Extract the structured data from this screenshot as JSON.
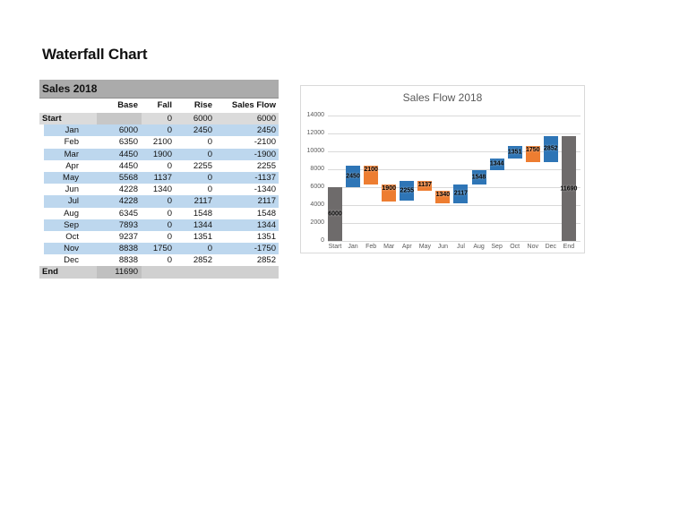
{
  "page_title": "Waterfall Chart",
  "table": {
    "title": "Sales 2018",
    "columns": [
      "",
      "Base",
      "Fall",
      "Rise",
      "Sales Flow"
    ],
    "rows": [
      {
        "label": "Start",
        "base": "",
        "fall": "0",
        "rise": "6000",
        "flow": "6000",
        "style": "total-start"
      },
      {
        "label": "Jan",
        "base": "6000",
        "fall": "0",
        "rise": "2450",
        "flow": "2450"
      },
      {
        "label": "Feb",
        "base": "6350",
        "fall": "2100",
        "rise": "0",
        "flow": "-2100"
      },
      {
        "label": "Mar",
        "base": "4450",
        "fall": "1900",
        "rise": "0",
        "flow": "-1900"
      },
      {
        "label": "Apr",
        "base": "4450",
        "fall": "0",
        "rise": "2255",
        "flow": "2255"
      },
      {
        "label": "May",
        "base": "5568",
        "fall": "1137",
        "rise": "0",
        "flow": "-1137"
      },
      {
        "label": "Jun",
        "base": "4228",
        "fall": "1340",
        "rise": "0",
        "flow": "-1340"
      },
      {
        "label": "Jul",
        "base": "4228",
        "fall": "0",
        "rise": "2117",
        "flow": "2117"
      },
      {
        "label": "Aug",
        "base": "6345",
        "fall": "0",
        "rise": "1548",
        "flow": "1548"
      },
      {
        "label": "Sep",
        "base": "7893",
        "fall": "0",
        "rise": "1344",
        "flow": "1344"
      },
      {
        "label": "Oct",
        "base": "9237",
        "fall": "0",
        "rise": "1351",
        "flow": "1351"
      },
      {
        "label": "Nov",
        "base": "8838",
        "fall": "1750",
        "rise": "0",
        "flow": "-1750"
      },
      {
        "label": "Dec",
        "base": "8838",
        "fall": "0",
        "rise": "2852",
        "flow": "2852"
      },
      {
        "label": "End",
        "base": "11690",
        "fall": "",
        "rise": "",
        "flow": "",
        "style": "total-end"
      }
    ]
  },
  "chart_data": {
    "type": "bar",
    "subtype": "waterfall",
    "title": "Sales Flow 2018",
    "categories": [
      "Start",
      "Jan",
      "Feb",
      "Mar",
      "Apr",
      "May",
      "Jun",
      "Jul",
      "Aug",
      "Sep",
      "Oct",
      "Nov",
      "Dec",
      "End"
    ],
    "points": [
      {
        "category": "Start",
        "role": "total",
        "base": 0,
        "value": 6000,
        "label": "6000"
      },
      {
        "category": "Jan",
        "role": "rise",
        "base": 6000,
        "value": 2450,
        "label": "2450"
      },
      {
        "category": "Feb",
        "role": "fall",
        "base": 6350,
        "value": 2100,
        "label": "2100"
      },
      {
        "category": "Mar",
        "role": "fall",
        "base": 4450,
        "value": 1900,
        "label": "1900"
      },
      {
        "category": "Apr",
        "role": "rise",
        "base": 4450,
        "value": 2255,
        "label": "2255"
      },
      {
        "category": "May",
        "role": "fall",
        "base": 5568,
        "value": 1137,
        "label": "1137"
      },
      {
        "category": "Jun",
        "role": "fall",
        "base": 4228,
        "value": 1340,
        "label": "1340"
      },
      {
        "category": "Jul",
        "role": "rise",
        "base": 4228,
        "value": 2117,
        "label": "2117"
      },
      {
        "category": "Aug",
        "role": "rise",
        "base": 6345,
        "value": 1548,
        "label": "1548"
      },
      {
        "category": "Sep",
        "role": "rise",
        "base": 7893,
        "value": 1344,
        "label": "1344"
      },
      {
        "category": "Oct",
        "role": "rise",
        "base": 9237,
        "value": 1351,
        "label": "1351"
      },
      {
        "category": "Nov",
        "role": "fall",
        "base": 8838,
        "value": 1750,
        "label": "1750"
      },
      {
        "category": "Dec",
        "role": "rise",
        "base": 8838,
        "value": 2852,
        "label": "2852"
      },
      {
        "category": "End",
        "role": "total",
        "base": 0,
        "value": 11690,
        "label": "11690"
      }
    ],
    "ylim": [
      0,
      14000
    ],
    "ytick_step": 2000,
    "grid": true,
    "legend": false,
    "colors": {
      "rise": "#2E75B6",
      "fall": "#ED7D31",
      "total": "#6E6B6B"
    },
    "band_color": "#BDD7EE"
  }
}
